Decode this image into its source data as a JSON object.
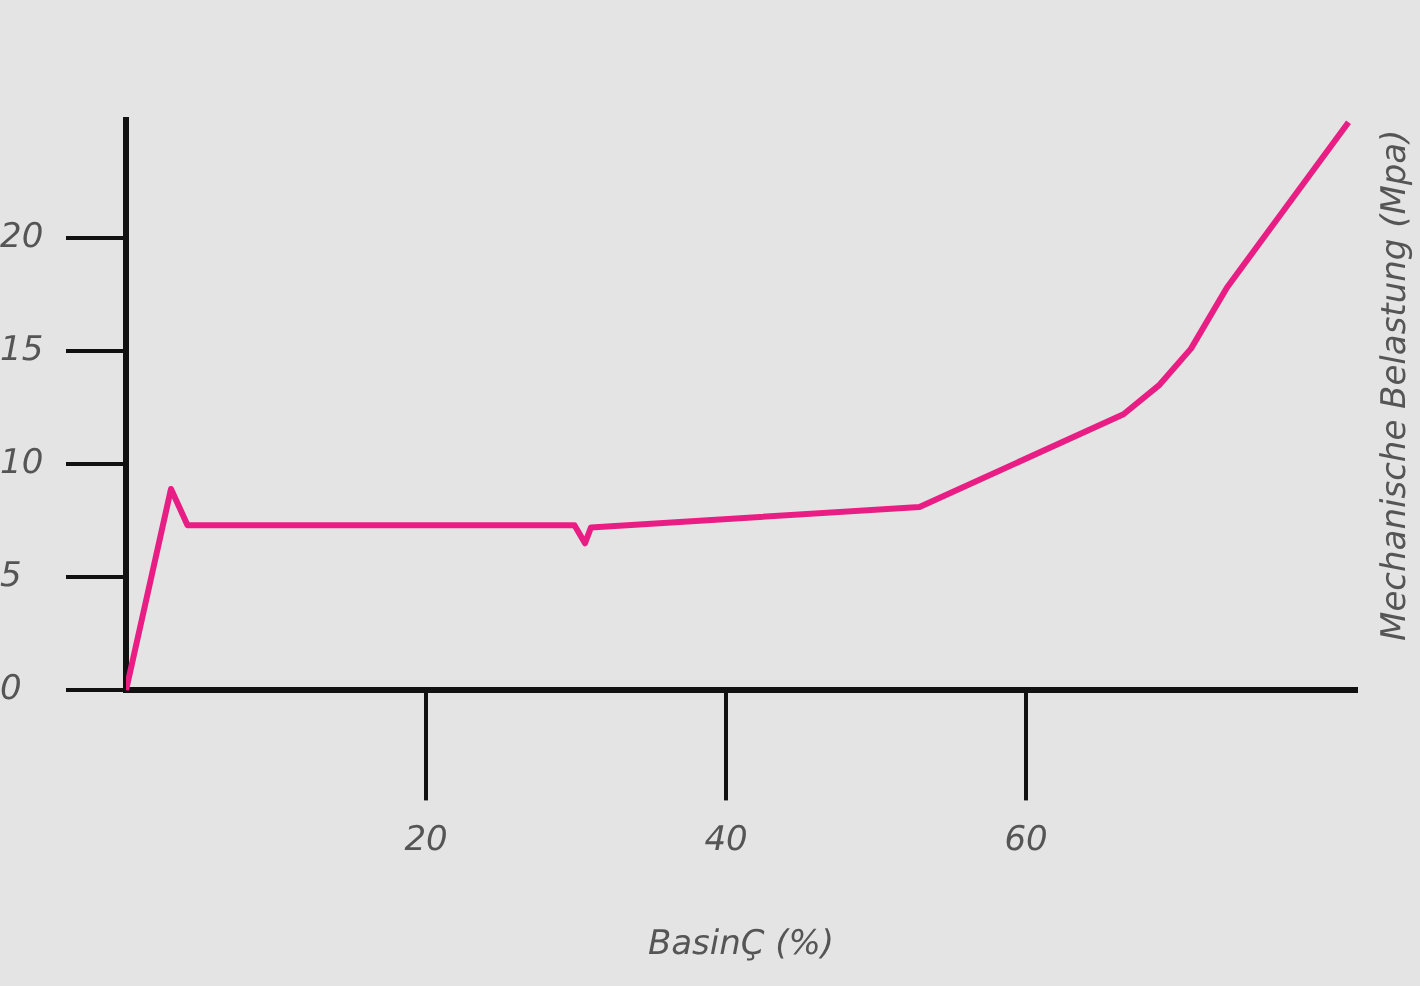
{
  "chart_data": {
    "type": "line",
    "xlabel": "BasinÇ (%)",
    "ylabel": "Mechanische Belastung (Mpa)",
    "x": [
      0,
      3.0,
      4.1,
      29.9,
      30.6,
      31.0,
      52.9,
      66.5,
      68.9,
      71.0,
      73.4,
      81.5
    ],
    "series": [
      {
        "color": "#e91e84",
        "values": [
          0,
          8.9,
          7.3,
          7.3,
          6.5,
          7.2,
          8.1,
          12.2,
          13.5,
          15.1,
          17.8,
          25.1
        ]
      }
    ],
    "xlim": [
      0,
      82
    ],
    "xticks": [
      20,
      40,
      60
    ],
    "ylim": [
      0,
      25.2
    ],
    "yticks": [
      0,
      5,
      10,
      15,
      20
    ],
    "grid": false,
    "legend": false,
    "marker": "none",
    "line_style": "solid"
  }
}
